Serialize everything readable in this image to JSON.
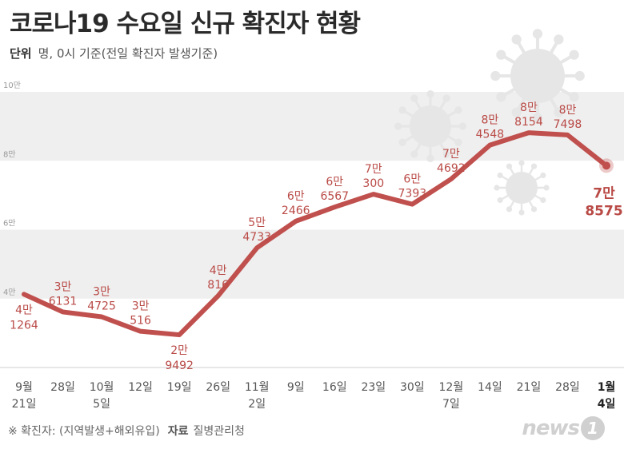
{
  "title": "코로나19 수요일 신규 확진자 현황",
  "unit_label": "단위",
  "unit_text": "명, 0시 기준(전일 확진자 발생기준)",
  "footnote": "※ 확진자: (지역발생+해외유입)",
  "source_label": "자료",
  "source": "질병관리청",
  "logo_text": "news",
  "logo_badge": "1",
  "colors": {
    "line": "#c0504d",
    "label": "#b94a46",
    "band": "#efefef",
    "decor": "#e6e6e6"
  },
  "chart_data": {
    "type": "line",
    "title": "코로나19 수요일 신규 확진자 현황",
    "ylim": [
      0,
      100000
    ],
    "y_ticks": [
      {
        "value": 100000,
        "label": "10만"
      },
      {
        "value": 80000,
        "label": "8만"
      },
      {
        "value": 60000,
        "label": "6만"
      },
      {
        "value": 40000,
        "label": "4만"
      }
    ],
    "categories": [
      [
        "9월",
        "21일"
      ],
      [
        "28일"
      ],
      [
        "10월",
        "5일"
      ],
      [
        "12일"
      ],
      [
        "19일"
      ],
      [
        "26일"
      ],
      [
        "11월",
        "2일"
      ],
      [
        "9일"
      ],
      [
        "16일"
      ],
      [
        "23일"
      ],
      [
        "30일"
      ],
      [
        "12월",
        "7일"
      ],
      [
        "14일"
      ],
      [
        "21일"
      ],
      [
        "28일"
      ],
      [
        "1월",
        "4일"
      ]
    ],
    "values": [
      41264,
      36131,
      34725,
      30516,
      29492,
      40816,
      54733,
      62466,
      66567,
      70300,
      67393,
      74692,
      84548,
      88154,
      87498,
      78575
    ],
    "value_labels": [
      [
        "4만",
        "1264"
      ],
      [
        "3만",
        "6131"
      ],
      [
        "3만",
        "4725"
      ],
      [
        "3만",
        "516"
      ],
      [
        "2만",
        "9492"
      ],
      [
        "4만",
        "816"
      ],
      [
        "5만",
        "4733"
      ],
      [
        "6만",
        "2466"
      ],
      [
        "6만",
        "6567"
      ],
      [
        "7만",
        "300"
      ],
      [
        "6만",
        "7393"
      ],
      [
        "7만",
        "4692"
      ],
      [
        "8만",
        "4548"
      ],
      [
        "8만",
        "8154"
      ],
      [
        "8만",
        "7498"
      ],
      [
        "7만",
        "8575"
      ]
    ],
    "label_positions": [
      "below",
      "above",
      "above",
      "above",
      "below",
      "above",
      "above",
      "above",
      "above",
      "above",
      "above",
      "above",
      "above",
      "above",
      "above",
      "below"
    ],
    "highlight_index": 15
  }
}
